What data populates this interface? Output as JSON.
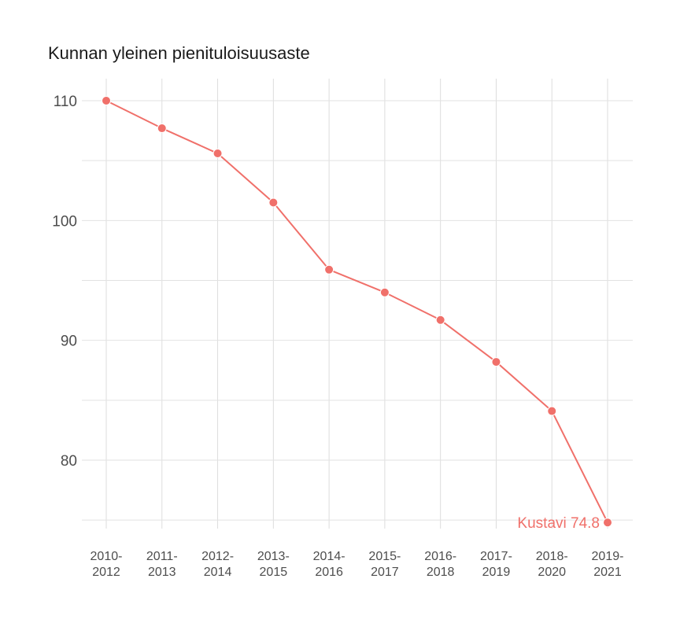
{
  "chart_data": {
    "type": "line",
    "title": "Kunnan yleinen pienituloisuusaste",
    "xlabel": "",
    "ylabel": "",
    "categories": [
      "2010-\n2012",
      "2011-\n2013",
      "2012-\n2014",
      "2013-\n2015",
      "2014-\n2016",
      "2015-\n2017",
      "2016-\n2018",
      "2017-\n2019",
      "2018-\n2020",
      "2019-\n2021"
    ],
    "series": [
      {
        "name": "Kustavi",
        "values": [
          110.0,
          107.7,
          105.6,
          101.5,
          95.9,
          94.0,
          91.7,
          88.2,
          84.1,
          74.8
        ],
        "color": "#f0706a"
      }
    ],
    "end_label": "Kustavi 74.8",
    "yticks": [
      80,
      90,
      100,
      110
    ],
    "ylim": [
      74,
      111
    ],
    "grid": true,
    "legend": "none"
  }
}
